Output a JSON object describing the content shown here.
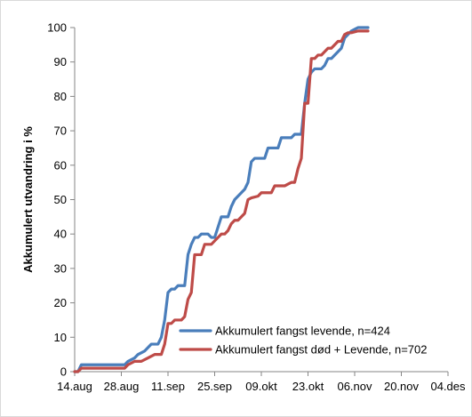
{
  "chart_data": {
    "type": "line",
    "title": "",
    "xlabel": "",
    "ylabel": "Akkumulert utvandring i %",
    "x_ticks": [
      "14.aug",
      "28.aug",
      "11.sep",
      "25.sep",
      "09.okt",
      "23.okt",
      "06.nov",
      "20.nov",
      "04.des"
    ],
    "y_ticks": [
      "0",
      "10",
      "20",
      "30",
      "40",
      "50",
      "60",
      "70",
      "80",
      "90",
      "100"
    ],
    "ylim": [
      0,
      100
    ],
    "grid": false,
    "legend_position": "bottom-right",
    "series": [
      {
        "name": "Akkumulert fangst levende, n=424",
        "color": "#4a7ebb",
        "points": [
          [
            "14.aug",
            0
          ],
          [
            "15.aug",
            0
          ],
          [
            "16.aug",
            2
          ],
          [
            "18.aug",
            2
          ],
          [
            "22.aug",
            2
          ],
          [
            "26.aug",
            2
          ],
          [
            "29.aug",
            2
          ],
          [
            "30.aug",
            3
          ],
          [
            "01.sep",
            4
          ],
          [
            "02.sep",
            5
          ],
          [
            "04.sep",
            6
          ],
          [
            "06.sep",
            8
          ],
          [
            "07.sep",
            8
          ],
          [
            "08.sep",
            8
          ],
          [
            "09.sep",
            10
          ],
          [
            "10.sep",
            15
          ],
          [
            "11.sep",
            23
          ],
          [
            "12.sep",
            24
          ],
          [
            "13.sep",
            24
          ],
          [
            "14.sep",
            25
          ],
          [
            "15.sep",
            25
          ],
          [
            "16.sep",
            25
          ],
          [
            "17.sep",
            34
          ],
          [
            "18.sep",
            37
          ],
          [
            "19.sep",
            39
          ],
          [
            "20.sep",
            39
          ],
          [
            "21.sep",
            40
          ],
          [
            "23.sep",
            40
          ],
          [
            "24.sep",
            39
          ],
          [
            "25.sep",
            39
          ],
          [
            "26.sep",
            42
          ],
          [
            "27.sep",
            45
          ],
          [
            "29.sep",
            45
          ],
          [
            "30.sep",
            48
          ],
          [
            "01.okt",
            50
          ],
          [
            "03.okt",
            52
          ],
          [
            "04.okt",
            53
          ],
          [
            "05.okt",
            55
          ],
          [
            "06.okt",
            61
          ],
          [
            "07.okt",
            62
          ],
          [
            "09.okt",
            62
          ],
          [
            "10.okt",
            62
          ],
          [
            "11.okt",
            65
          ],
          [
            "12.okt",
            65
          ],
          [
            "14.okt",
            65
          ],
          [
            "15.okt",
            68
          ],
          [
            "17.okt",
            68
          ],
          [
            "18.okt",
            68
          ],
          [
            "19.okt",
            69
          ],
          [
            "21.okt",
            69
          ],
          [
            "22.okt",
            78
          ],
          [
            "23.okt",
            85
          ],
          [
            "24.okt",
            87
          ],
          [
            "25.okt",
            88
          ],
          [
            "27.okt",
            88
          ],
          [
            "28.okt",
            89
          ],
          [
            "29.okt",
            91
          ],
          [
            "30.okt",
            91
          ],
          [
            "31.okt",
            92
          ],
          [
            "02.nov",
            94
          ],
          [
            "03.nov",
            97
          ],
          [
            "04.nov",
            98
          ],
          [
            "05.nov",
            99
          ],
          [
            "06.nov",
            99.5
          ],
          [
            "07.nov",
            100
          ],
          [
            "10.nov",
            100
          ]
        ]
      },
      {
        "name": "Akkumulert fangst død + Levende, n=702",
        "color": "#be4b48",
        "points": [
          [
            "14.aug",
            0
          ],
          [
            "15.aug",
            0
          ],
          [
            "16.aug",
            1
          ],
          [
            "18.aug",
            1
          ],
          [
            "22.aug",
            1
          ],
          [
            "26.aug",
            1
          ],
          [
            "29.aug",
            1
          ],
          [
            "30.aug",
            2
          ],
          [
            "01.sep",
            3
          ],
          [
            "03.sep",
            3
          ],
          [
            "05.sep",
            4
          ],
          [
            "07.sep",
            5
          ],
          [
            "09.sep",
            5
          ],
          [
            "10.sep",
            8
          ],
          [
            "11.sep",
            14
          ],
          [
            "12.sep",
            14
          ],
          [
            "13.sep",
            15
          ],
          [
            "14.sep",
            15
          ],
          [
            "15.sep",
            15
          ],
          [
            "16.sep",
            16
          ],
          [
            "17.sep",
            21
          ],
          [
            "18.sep",
            23
          ],
          [
            "19.sep",
            34
          ],
          [
            "20.sep",
            34
          ],
          [
            "21.sep",
            34
          ],
          [
            "22.sep",
            37
          ],
          [
            "23.sep",
            37
          ],
          [
            "24.sep",
            37
          ],
          [
            "25.sep",
            38
          ],
          [
            "26.sep",
            39
          ],
          [
            "27.sep",
            40
          ],
          [
            "28.sep",
            40
          ],
          [
            "29.sep",
            41
          ],
          [
            "30.sep",
            43
          ],
          [
            "01.okt",
            44
          ],
          [
            "02.okt",
            44
          ],
          [
            "03.okt",
            45
          ],
          [
            "04.okt",
            46
          ],
          [
            "05.okt",
            50
          ],
          [
            "06.okt",
            50.5
          ],
          [
            "08.okt",
            51
          ],
          [
            "09.okt",
            52
          ],
          [
            "10.okt",
            52
          ],
          [
            "11.okt",
            52
          ],
          [
            "12.okt",
            52
          ],
          [
            "13.okt",
            54
          ],
          [
            "14.okt",
            54
          ],
          [
            "16.okt",
            54
          ],
          [
            "17.okt",
            54.5
          ],
          [
            "18.okt",
            55
          ],
          [
            "19.okt",
            55
          ],
          [
            "20.okt",
            59
          ],
          [
            "21.okt",
            62
          ],
          [
            "22.okt",
            78
          ],
          [
            "23.okt",
            78
          ],
          [
            "24.okt",
            91
          ],
          [
            "25.okt",
            91
          ],
          [
            "26.okt",
            92
          ],
          [
            "27.okt",
            92
          ],
          [
            "28.okt",
            93
          ],
          [
            "29.okt",
            94
          ],
          [
            "30.okt",
            94
          ],
          [
            "31.okt",
            95
          ],
          [
            "01.nov",
            96
          ],
          [
            "02.nov",
            96
          ],
          [
            "03.nov",
            98
          ],
          [
            "04.nov",
            98.5
          ],
          [
            "05.nov",
            98.5
          ],
          [
            "07.nov",
            99
          ],
          [
            "10.nov",
            99
          ]
        ]
      }
    ]
  }
}
